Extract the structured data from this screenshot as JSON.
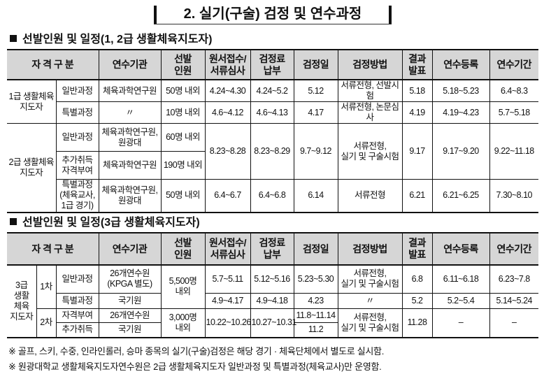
{
  "title": "2. 실기(구술) 검정 및 연수과정",
  "section1": {
    "heading": "선발인원 및 일정(1, 2급 생활체육지도자)",
    "headers": [
      "자 격 구 분",
      "연수기관",
      "선발\n인원",
      "원서접수/\n서류심사",
      "검정료\n납부",
      "검정일",
      "검정방법",
      "결과\n발표",
      "연수등록",
      "연수기간"
    ],
    "rows": [
      [
        {
          "t": "1급 생활체육\n지도자",
          "rs": 2
        },
        {
          "t": "일반과정"
        },
        {
          "t": "체육과학연구원"
        },
        {
          "t": "50명 내외"
        },
        {
          "t": "4.24~4.30"
        },
        {
          "t": "4.24~5.2"
        },
        {
          "t": "5.12"
        },
        {
          "t": "서류전형, 선발시험"
        },
        {
          "t": "5.18"
        },
        {
          "t": "5.18~5.23"
        },
        {
          "t": "6.4~8.3"
        }
      ],
      [
        {
          "t": "특별과정"
        },
        {
          "t": "〃"
        },
        {
          "t": "10명 내외"
        },
        {
          "t": "4.6~4.12"
        },
        {
          "t": "4.6~4.13"
        },
        {
          "t": "4.17"
        },
        {
          "t": "서류전형, 논문심사"
        },
        {
          "t": "4.19"
        },
        {
          "t": "4.19~4.23"
        },
        {
          "t": "5.7~5.18"
        }
      ],
      [
        {
          "t": "2급 생활체육\n지도자",
          "rs": 3
        },
        {
          "t": "일반과정"
        },
        {
          "t": "체육과학연구원,\n원광대"
        },
        {
          "t": "60명 내외"
        },
        {
          "t": "8.23~8.28",
          "rs": 2
        },
        {
          "t": "8.23~8.29",
          "rs": 2
        },
        {
          "t": "9.7~9.12",
          "rs": 2
        },
        {
          "t": "서류전형,\n실기 및 구술시험",
          "rs": 2
        },
        {
          "t": "9.17",
          "rs": 2
        },
        {
          "t": "9.17~9.20",
          "rs": 2
        },
        {
          "t": "9.22~11.18",
          "rs": 2
        }
      ],
      [
        {
          "t": "추가취득\n자격부여"
        },
        {
          "t": "체육과학연구원"
        },
        {
          "t": "190명 내외"
        }
      ],
      [
        {
          "t": "특별과정\n(체육교사,\n1급 경기)"
        },
        {
          "t": "체육과학연구원,\n원광대"
        },
        {
          "t": "50명 내외"
        },
        {
          "t": "6.4~6.7"
        },
        {
          "t": "6.4~6.8"
        },
        {
          "t": "6.14"
        },
        {
          "t": "서류전형"
        },
        {
          "t": "6.21"
        },
        {
          "t": "6.21~6.25"
        },
        {
          "t": "7.30~8.10"
        }
      ]
    ]
  },
  "section2": {
    "heading": "선발인원 및 일정(3급 생활체육지도자)",
    "headers": [
      "자 격 구 분",
      "연수기관",
      "선발\n인원",
      "원서접수/\n서류심사",
      "검정료\n납부",
      "검정일",
      "검정방법",
      "결과\n발표",
      "연수등록",
      "연수기간"
    ],
    "rows": [
      [
        {
          "t": "3급\n생활\n체육\n지도자",
          "rs": 4
        },
        {
          "t": "1차",
          "rs": 2
        },
        {
          "t": "일반과정"
        },
        {
          "t": "26개연수원\n(KPGA 별도)"
        },
        {
          "t": "5,500명\n내외",
          "rs": 2
        },
        {
          "t": "5.7~5.11"
        },
        {
          "t": "5.12~5.16"
        },
        {
          "t": "5.23~5.30"
        },
        {
          "t": "서류전형,\n실기 및 구술시험"
        },
        {
          "t": "6.8"
        },
        {
          "t": "6.11~6.18"
        },
        {
          "t": "6.23~7.8"
        }
      ],
      [
        {
          "t": "특별과정"
        },
        {
          "t": "국기원"
        },
        {
          "t": "4.9~4.17"
        },
        {
          "t": "4.9~4.18"
        },
        {
          "t": "4.23"
        },
        {
          "t": "〃"
        },
        {
          "t": "5.2"
        },
        {
          "t": "5.2~5.4"
        },
        {
          "t": "5.14~5.24"
        }
      ],
      [
        {
          "t": "2차",
          "rs": 2
        },
        {
          "t": "자격부여"
        },
        {
          "t": "26개연수원"
        },
        {
          "t": "3,000명\n내외",
          "rs": 2
        },
        {
          "t": "10.22~10.26",
          "rs": 2
        },
        {
          "t": "10.27~10.31",
          "rs": 2
        },
        {
          "t": "11.8~11.14"
        },
        {
          "t": "서류전형,\n실기 및 구술시험",
          "rs": 2
        },
        {
          "t": "11.28",
          "rs": 2
        },
        {
          "t": "–",
          "rs": 2
        },
        {
          "t": "–",
          "rs": 2
        }
      ],
      [
        {
          "t": "추가취득"
        },
        {
          "t": "국기원"
        },
        {
          "t": "11.2"
        }
      ]
    ]
  },
  "notes": [
    "※ 골프, 스키, 수중, 인라인롤러, 승마 종목의 실기(구술)검정은 해당 경기 · 체육단체에서 별도로 실시함.",
    "※ 원광대학교 생활체육지도자연수원은 2급 생활체육지도자 일반과정 및 특별과정(체육교사)만 운영함."
  ]
}
